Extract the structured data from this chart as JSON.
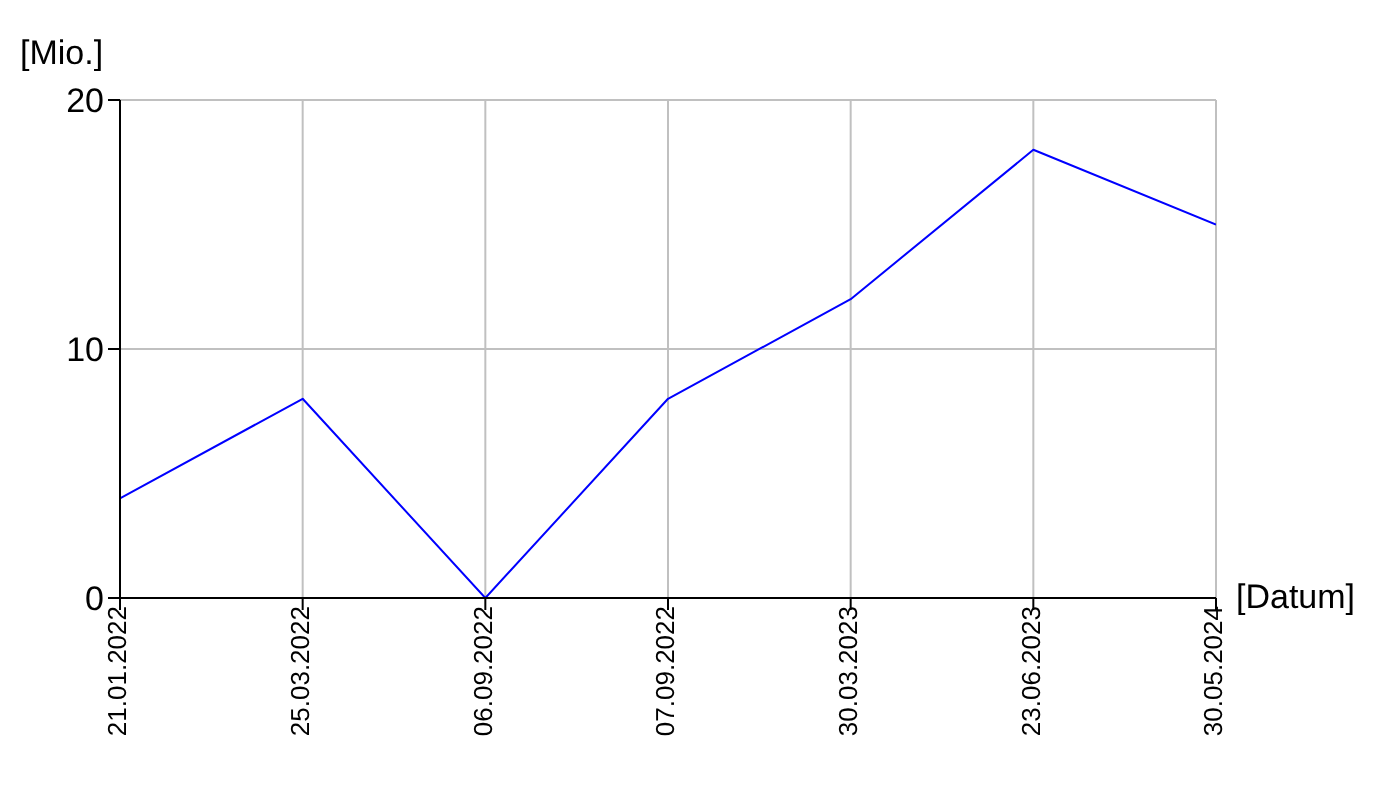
{
  "chart_data": {
    "type": "line",
    "xlabel": "[Datum]",
    "ylabel": "[Mio.]",
    "categories": [
      "21.01.2022",
      "25.03.2022",
      "06.09.2022",
      "07.09.2022",
      "30.03.2023",
      "23.06.2023",
      "30.05.2024"
    ],
    "series": [
      {
        "color": "#0000ff",
        "values": [
          4,
          8,
          0,
          8,
          12,
          18,
          15
        ]
      }
    ],
    "ylim": [
      0,
      20
    ],
    "yticks": [
      0,
      10,
      20
    ],
    "grid": true,
    "marker": "none",
    "line_style": "solid"
  }
}
